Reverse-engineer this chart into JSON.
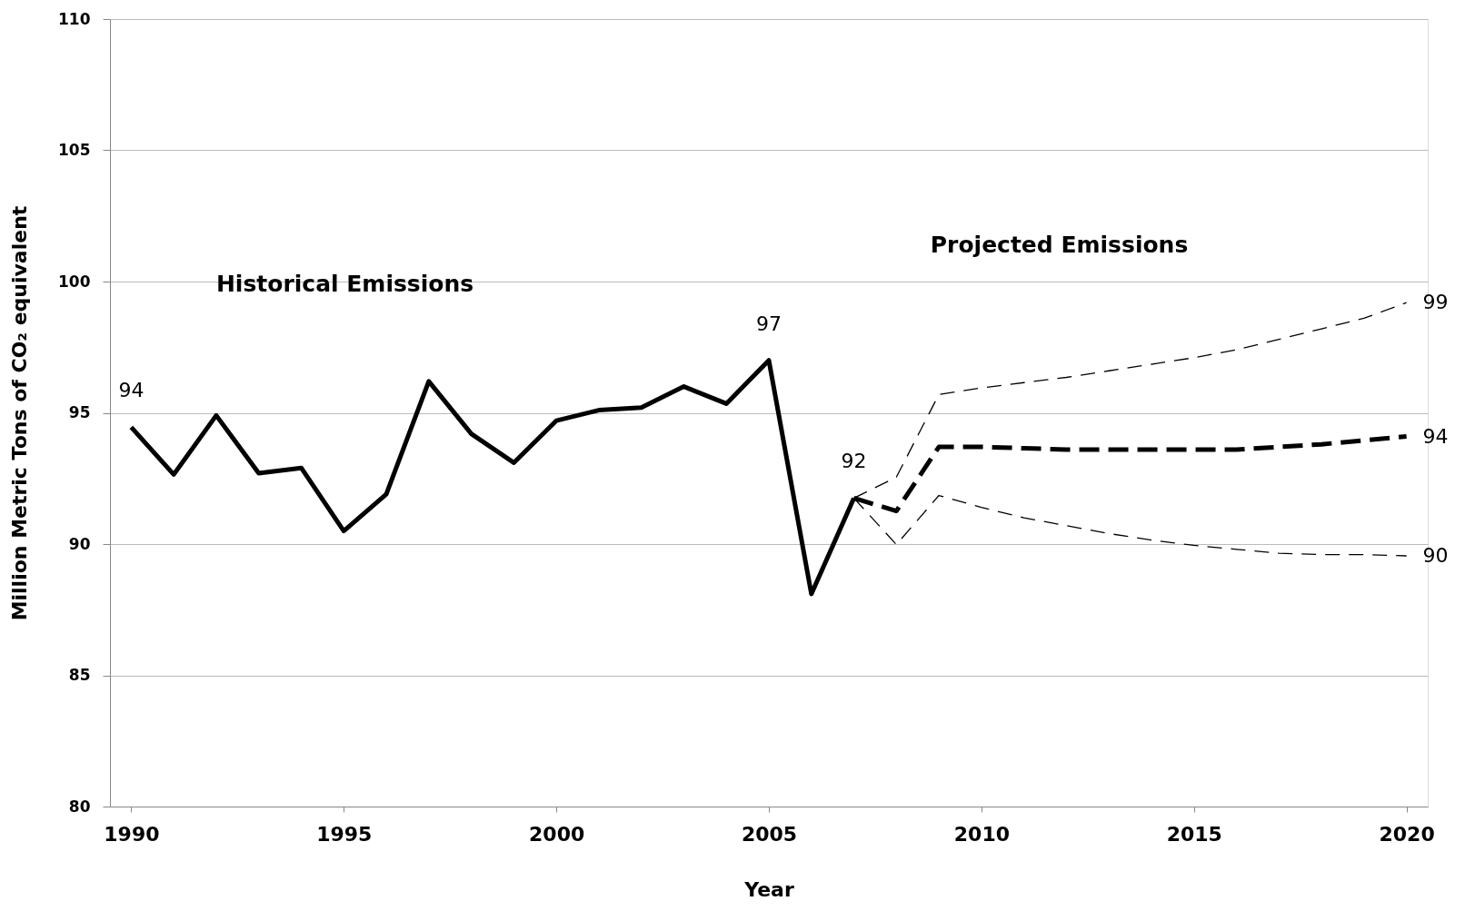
{
  "chart_data": {
    "type": "line",
    "xlabel": "Year",
    "ylabel": "Million Metric Tons of CO₂ equivalent",
    "xlim": [
      1989.5,
      2020.5
    ],
    "xticks": [
      1990,
      1995,
      2000,
      2005,
      2010,
      2015,
      2020
    ],
    "ylim": [
      80,
      110
    ],
    "yticks": [
      80,
      85,
      90,
      95,
      100,
      105,
      110
    ],
    "grid": "y",
    "marker": "none",
    "series": [
      {
        "color": "#000000",
        "line_style": "solid",
        "x": [
          1990,
          1991,
          1992,
          1993,
          1994,
          1995,
          1996,
          1997,
          1998,
          1999,
          2000,
          2001,
          2002,
          2003,
          2004,
          2005,
          2006,
          2007
        ],
        "values": [
          94.45,
          92.65,
          94.9,
          92.7,
          92.9,
          90.5,
          91.9,
          96.2,
          94.2,
          93.1,
          94.7,
          95.1,
          95.2,
          96.0,
          95.35,
          97.0,
          88.1,
          91.75
        ]
      },
      {
        "color": "#000000",
        "line_style": "dashed",
        "x": [
          2007,
          2008,
          2009,
          2010,
          2011,
          2012,
          2013,
          2014,
          2015,
          2016,
          2017,
          2018,
          2019,
          2020
        ],
        "values": [
          91.75,
          91.26,
          93.7,
          93.7,
          93.65,
          93.6,
          93.6,
          93.6,
          93.6,
          93.6,
          93.7,
          93.8,
          93.95,
          94.1
        ]
      },
      {
        "color": "#000000",
        "line_style": "dashed",
        "x": [
          2007,
          2008,
          2009,
          2010,
          2011,
          2012,
          2013,
          2014,
          2015,
          2016,
          2017,
          2018,
          2019,
          2020
        ],
        "values": [
          91.75,
          92.55,
          95.7,
          95.95,
          96.15,
          96.35,
          96.6,
          96.85,
          97.1,
          97.4,
          97.8,
          98.2,
          98.6,
          99.2
        ]
      },
      {
        "color": "#000000",
        "line_style": "dashed",
        "x": [
          2007,
          2008,
          2009,
          2010,
          2011,
          2012,
          2013,
          2014,
          2015,
          2016,
          2017,
          2018,
          2019,
          2020
        ],
        "values": [
          91.75,
          89.98,
          91.85,
          91.4,
          91.0,
          90.7,
          90.4,
          90.15,
          89.95,
          89.8,
          89.65,
          89.6,
          89.6,
          89.55
        ]
      }
    ],
    "annotations": [
      "Historical Emissions",
      "Projected Emissions",
      {
        "text": "94",
        "x": 1990,
        "y": 94.45
      },
      {
        "text": "97",
        "x": 2005,
        "y": 97.0
      },
      {
        "text": "92",
        "x": 2007,
        "y": 91.75
      },
      {
        "text": "99",
        "x": 2020,
        "y": 99.2
      },
      {
        "text": "94",
        "x": 2020,
        "y": 94.1
      },
      {
        "text": "90",
        "x": 2020,
        "y": 89.55
      }
    ]
  }
}
